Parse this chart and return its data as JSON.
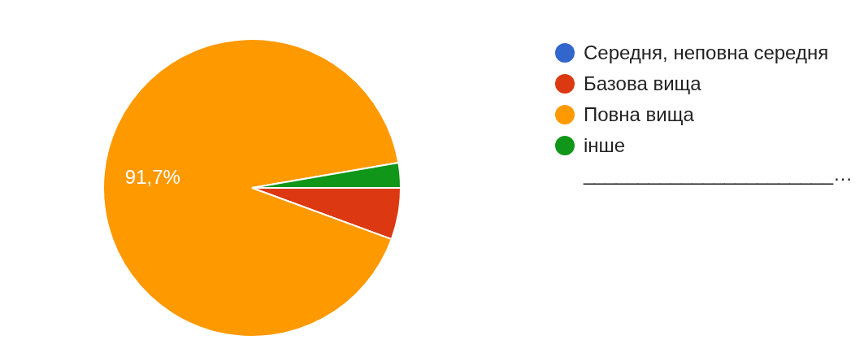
{
  "chart_data": {
    "type": "pie",
    "categories": [
      "Середня, неповна середня",
      "Базова вища",
      "Повна вища",
      "інше _______________________…"
    ],
    "values": [
      0,
      5.6,
      91.7,
      2.7
    ],
    "colors": [
      "#3366cc",
      "#dc3912",
      "#ff9900",
      "#109618"
    ],
    "value_labels": [
      null,
      null,
      "91,7%",
      null
    ],
    "legend": "right"
  }
}
